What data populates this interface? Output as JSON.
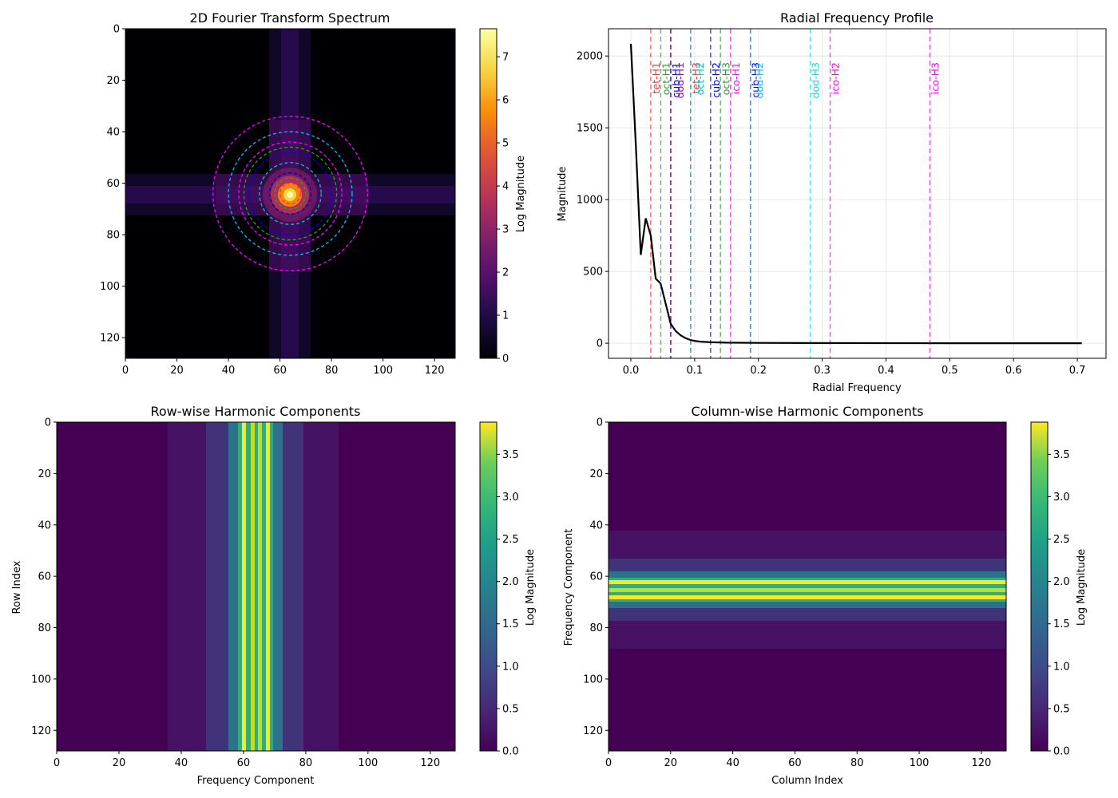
{
  "chart_data": [
    {
      "id": "spectrum",
      "type": "heatmap",
      "title": "2D Fourier Transform Spectrum",
      "xlabel": "",
      "ylabel": "",
      "xlim": [
        0,
        128
      ],
      "ylim": [
        128,
        0
      ],
      "xticks": [
        0,
        20,
        40,
        60,
        80,
        100,
        120
      ],
      "yticks": [
        0,
        20,
        40,
        60,
        80,
        100,
        120
      ],
      "colormap": "inferno",
      "colorbar": {
        "label": "Log Magnitude",
        "range": [
          0,
          7.65
        ],
        "ticks": [
          0,
          1,
          2,
          3,
          4,
          5,
          6,
          7
        ]
      },
      "center": [
        64,
        64
      ],
      "overlay_circles": [
        {
          "radius": 4,
          "color": "#ff3030"
        },
        {
          "radius": 6,
          "color": "#2ca02c"
        },
        {
          "radius": 8,
          "color": "#000090"
        },
        {
          "radius": 12,
          "color": "#00c8c8"
        },
        {
          "radius": 16,
          "color": "#0000ff"
        },
        {
          "radius": 18,
          "color": "#2ca02c"
        },
        {
          "radius": 20,
          "color": "#ff00ff"
        },
        {
          "radius": 24,
          "color": "#00bfff"
        },
        {
          "radius": 30,
          "color": "#ff00ff"
        }
      ]
    },
    {
      "id": "radial",
      "type": "line",
      "title": "Radial Frequency Profile",
      "xlabel": "Radial Frequency",
      "ylabel": "Magnitude",
      "xlim": [
        -0.035,
        0.745
      ],
      "ylim": [
        -105,
        2190
      ],
      "xticks": [
        0.0,
        0.1,
        0.2,
        0.3,
        0.4,
        0.5,
        0.6,
        0.7
      ],
      "xtick_labels": [
        "0.0",
        "0.1",
        "0.2",
        "0.3",
        "0.4",
        "0.5",
        "0.6",
        "0.7"
      ],
      "yticks": [
        0,
        500,
        1000,
        1500,
        2000
      ],
      "grid": true,
      "series": [
        {
          "color": "#000000",
          "x": [
            0.0,
            0.0078,
            0.0156,
            0.0234,
            0.0312,
            0.039,
            0.0468,
            0.0546,
            0.0625,
            0.0703,
            0.078,
            0.0859,
            0.0937,
            0.1015,
            0.1093,
            0.125,
            0.15,
            0.2,
            0.3,
            0.4,
            0.5,
            0.6,
            0.707
          ],
          "y": [
            2085,
            1380,
            615,
            870,
            750,
            450,
            415,
            275,
            135,
            85,
            55,
            35,
            22,
            15,
            11,
            7,
            4,
            2,
            1,
            0.5,
            0.3,
            0.2,
            0.1
          ]
        }
      ],
      "vlines": [
        {
          "x": 0.0312,
          "label": "tet-H1",
          "color": "#ff3030"
        },
        {
          "x": 0.0469,
          "label": "oct-H1",
          "color": "#2ca02c"
        },
        {
          "x": 0.0625,
          "label": "cub-H1",
          "color": "#0000ff"
        },
        {
          "x": 0.0625,
          "label": "dod-H1",
          "color": "#9400d3"
        },
        {
          "x": 0.0938,
          "label": "tet-H3",
          "color": "#ff3030"
        },
        {
          "x": 0.0938,
          "label": "oct-H2",
          "color": "#00c8c8"
        },
        {
          "x": 0.125,
          "label": "cub-H2",
          "color": "#0000ff"
        },
        {
          "x": 0.1406,
          "label": "oct-H3",
          "color": "#2ca02c"
        },
        {
          "x": 0.1563,
          "label": "ico-H1",
          "color": "#ff00ff"
        },
        {
          "x": 0.1875,
          "label": "cub-H3",
          "color": "#0000ff"
        },
        {
          "x": 0.1875,
          "label": "dod-H2",
          "color": "#00bfff"
        },
        {
          "x": 0.2813,
          "label": "dod-H3",
          "color": "#00e5e5"
        },
        {
          "x": 0.3125,
          "label": "ico-H2",
          "color": "#ff00ff"
        },
        {
          "x": 0.4688,
          "label": "ico-H3",
          "color": "#ff00ff"
        }
      ]
    },
    {
      "id": "rowwise",
      "type": "heatmap",
      "title": "Row-wise Harmonic Components",
      "xlabel": "Frequency Component",
      "ylabel": "Row Index",
      "xlim": [
        0,
        128
      ],
      "ylim": [
        128,
        0
      ],
      "xticks": [
        0,
        20,
        40,
        60,
        80,
        100,
        120
      ],
      "yticks": [
        0,
        20,
        40,
        60,
        80,
        100,
        120
      ],
      "colormap": "viridis",
      "colorbar": {
        "label": "Log Magnitude",
        "range": [
          0,
          3.88
        ],
        "ticks": [
          0.0,
          0.5,
          1.0,
          1.5,
          2.0,
          2.5,
          3.0,
          3.5
        ],
        "tick_labels": [
          "0.0",
          "0.5",
          "1.0",
          "1.5",
          "2.0",
          "2.5",
          "3.0",
          "3.5"
        ]
      }
    },
    {
      "id": "colwise",
      "type": "heatmap",
      "title": "Column-wise Harmonic Components",
      "xlabel": "Column Index",
      "ylabel": "Frequency Component",
      "xlim": [
        0,
        128
      ],
      "ylim": [
        128,
        0
      ],
      "xticks": [
        0,
        20,
        40,
        60,
        80,
        100,
        120
      ],
      "yticks": [
        0,
        20,
        40,
        60,
        80,
        100,
        120
      ],
      "colormap": "viridis",
      "colorbar": {
        "label": "Log Magnitude",
        "range": [
          0,
          3.88
        ],
        "ticks": [
          0.0,
          0.5,
          1.0,
          1.5,
          2.0,
          2.5,
          3.0,
          3.5
        ],
        "tick_labels": [
          "0.0",
          "0.5",
          "1.0",
          "1.5",
          "2.0",
          "2.5",
          "3.0",
          "3.5"
        ]
      }
    }
  ]
}
